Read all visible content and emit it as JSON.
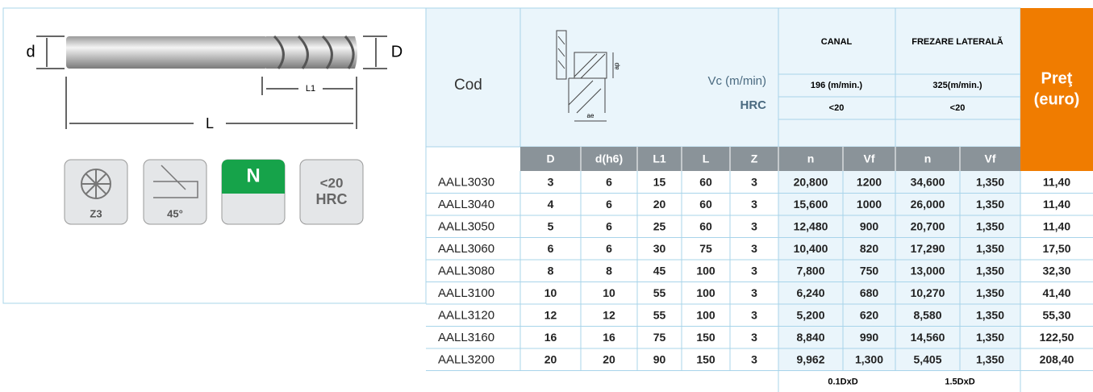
{
  "tool_panel": {
    "labels": {
      "d": "d",
      "D": "D",
      "L1": "L1",
      "L": "L"
    },
    "icons": [
      "Z3",
      "45°",
      "N",
      "<20",
      "HRC"
    ]
  },
  "table": {
    "header": {
      "cod": "Cod",
      "vc": "Vc (m/min)",
      "hrc": "HRC",
      "ap": "ap",
      "ae": "ae",
      "canal": "CANAL",
      "frezare": "FREZARE LATERALĂ",
      "canal_vc": "196 (m/min.)",
      "frezare_vc": "325(m/min.)",
      "canal_hrc": "<20",
      "frezare_hrc": "<20",
      "price": [
        "Preţ",
        "(euro)"
      ]
    },
    "columns": [
      "D",
      "d(h6)",
      "L1",
      "L",
      "Z",
      "n",
      "Vf",
      "n",
      "Vf"
    ],
    "rows": [
      [
        "AALL3030",
        "3",
        "6",
        "15",
        "60",
        "3",
        "20,800",
        "1200",
        "34,600",
        "1,350",
        "11,40"
      ],
      [
        "AALL3040",
        "4",
        "6",
        "20",
        "60",
        "3",
        "15,600",
        "1000",
        "26,000",
        "1,350",
        "11,40"
      ],
      [
        "AALL3050",
        "5",
        "6",
        "25",
        "60",
        "3",
        "12,480",
        "900",
        "20,700",
        "1,350",
        "11,40"
      ],
      [
        "AALL3060",
        "6",
        "6",
        "30",
        "75",
        "3",
        "10,400",
        "820",
        "17,290",
        "1,350",
        "17,50"
      ],
      [
        "AALL3080",
        "8",
        "8",
        "45",
        "100",
        "3",
        "7,800",
        "750",
        "13,000",
        "1,350",
        "32,30"
      ],
      [
        "AALL3100",
        "10",
        "10",
        "55",
        "100",
        "3",
        "6,240",
        "680",
        "10,270",
        "1,350",
        "41,40"
      ],
      [
        "AALL3120",
        "12",
        "12",
        "55",
        "100",
        "3",
        "5,200",
        "620",
        "8,580",
        "1,350",
        "55,30"
      ],
      [
        "AALL3160",
        "16",
        "16",
        "75",
        "150",
        "3",
        "8,840",
        "990",
        "14,560",
        "1,350",
        "122,50"
      ],
      [
        "AALL3200",
        "20",
        "20",
        "90",
        "150",
        "3",
        "9,962",
        "1,300",
        "5,405",
        "1,350",
        "208,40"
      ]
    ],
    "footer": [
      "0.1DxD",
      "1.5DxD"
    ]
  }
}
